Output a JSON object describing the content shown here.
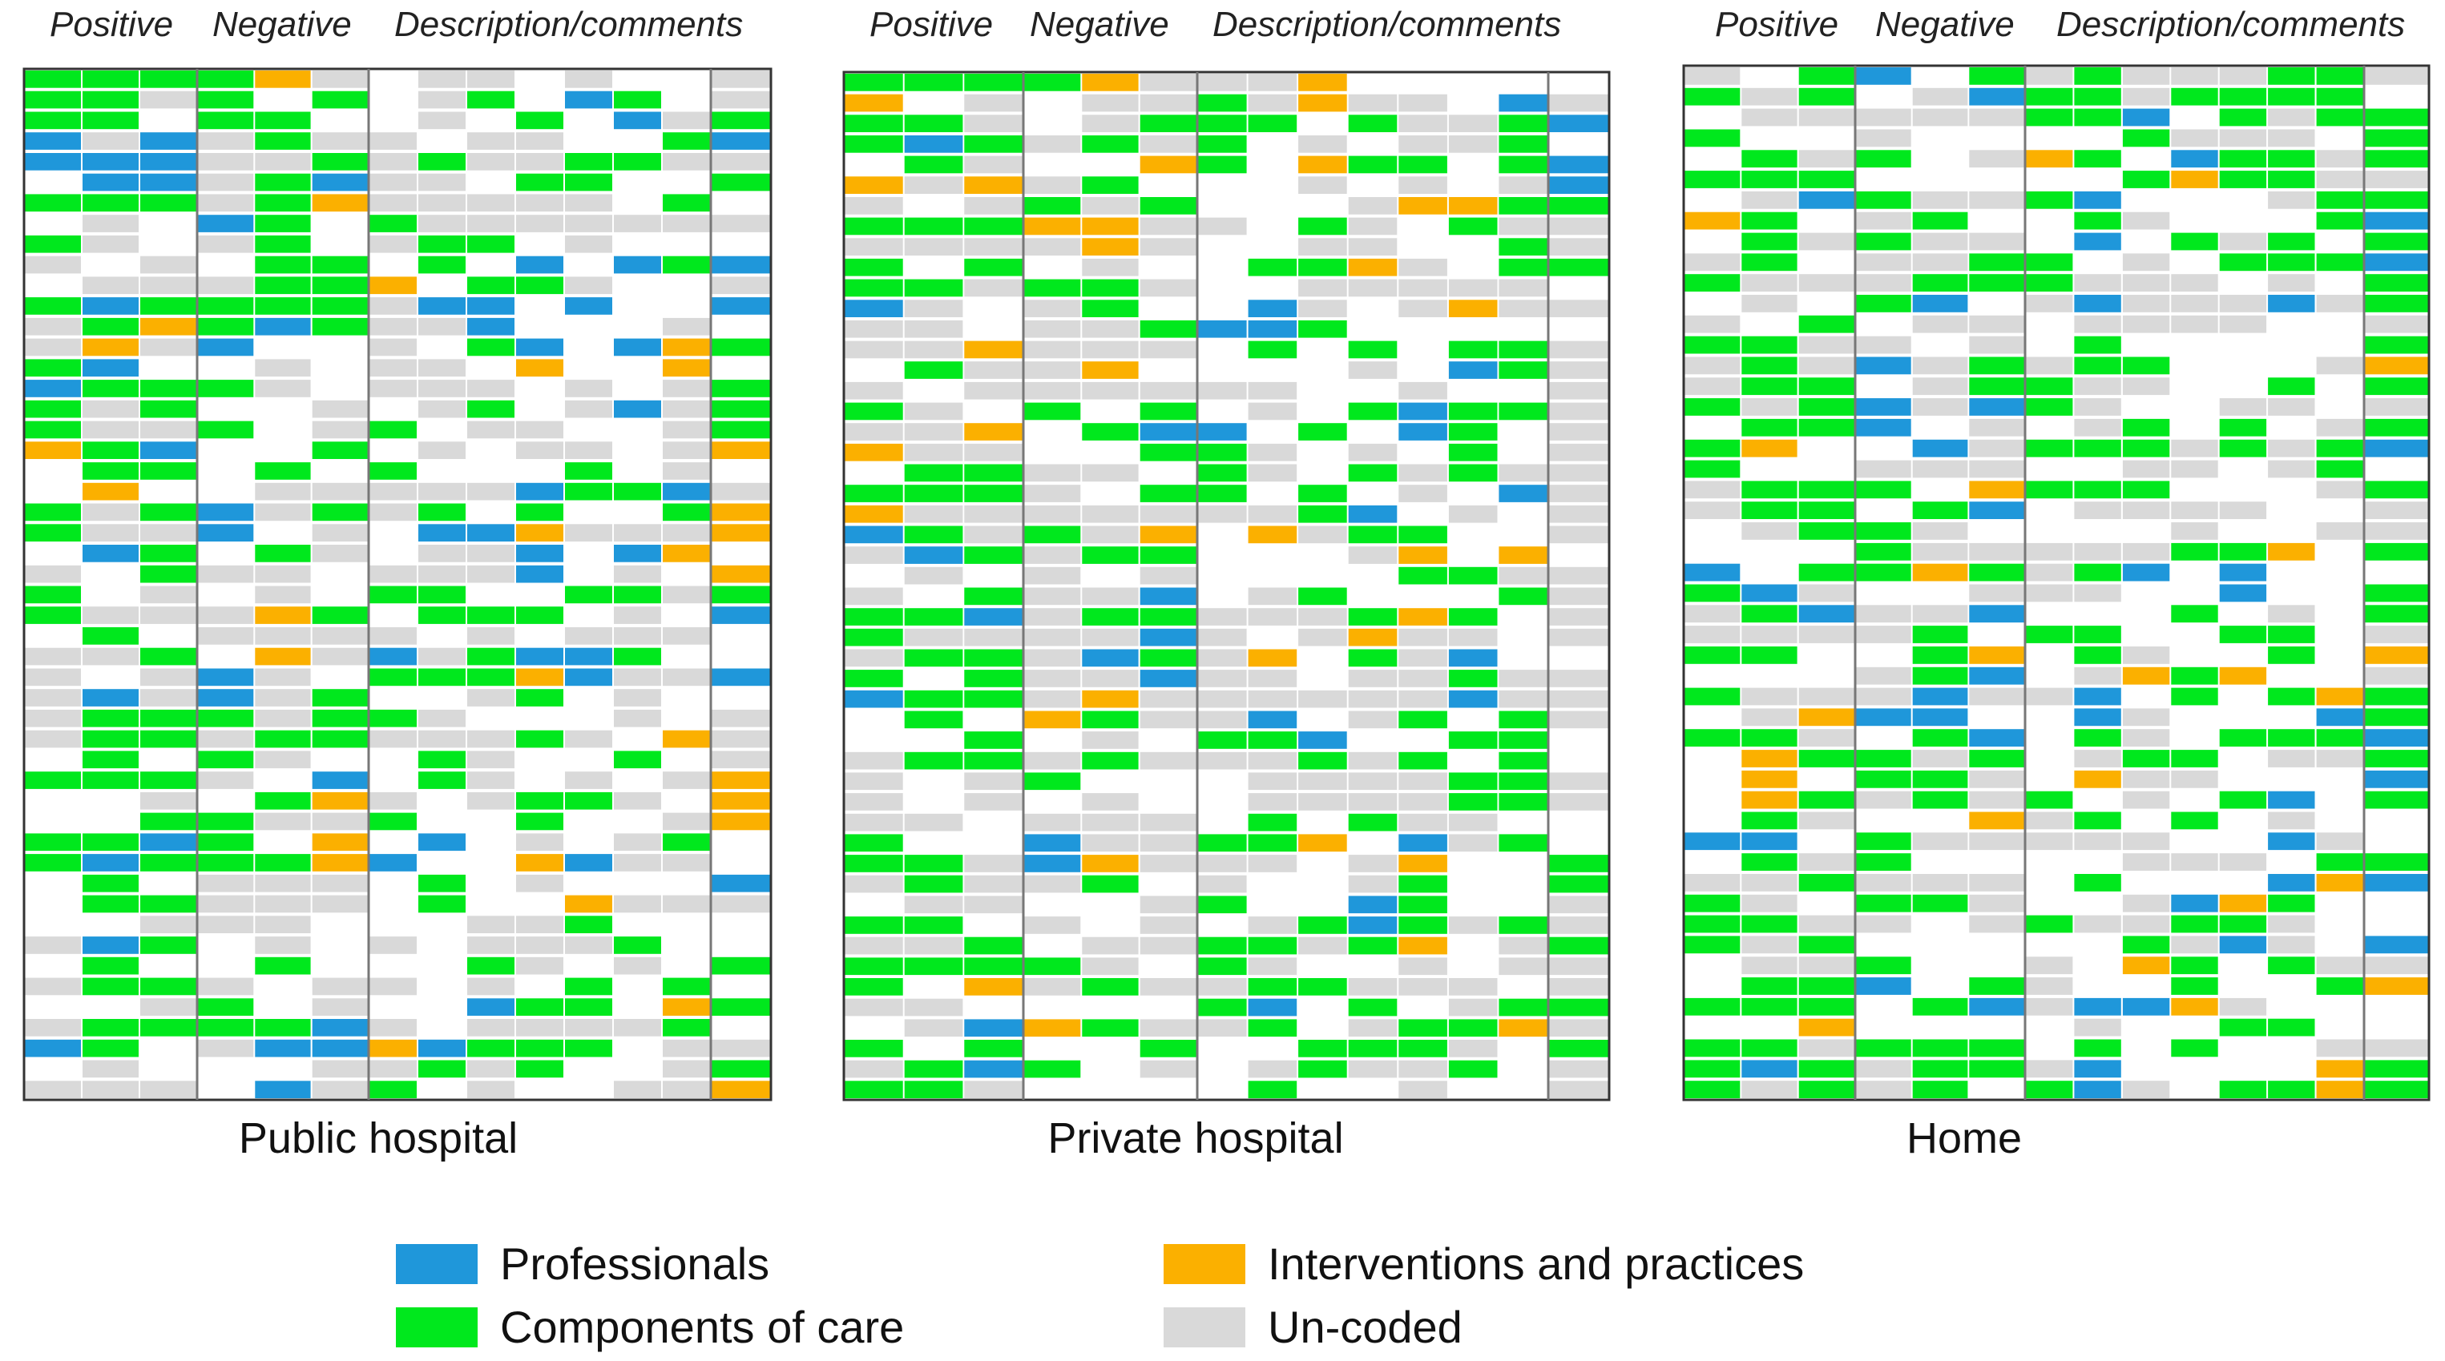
{
  "chart_data": {
    "type": "heatmap",
    "columns": [
      "Positive",
      "Negative",
      "Description/comments"
    ],
    "categories": [
      {
        "name": "Professionals",
        "color": "#1f97da"
      },
      {
        "name": "Components of care",
        "color": "#00e81d"
      },
      {
        "name": "Interventions and practices",
        "color": "#fbb000"
      },
      {
        "name": "Un-coded",
        "color": "#d9d9d9"
      }
    ],
    "panels": [
      {
        "title": "Public hospital",
        "rows": 50
      },
      {
        "title": "Private hospital",
        "rows": 50
      },
      {
        "title": "Home",
        "rows": 50
      }
    ]
  }
}
